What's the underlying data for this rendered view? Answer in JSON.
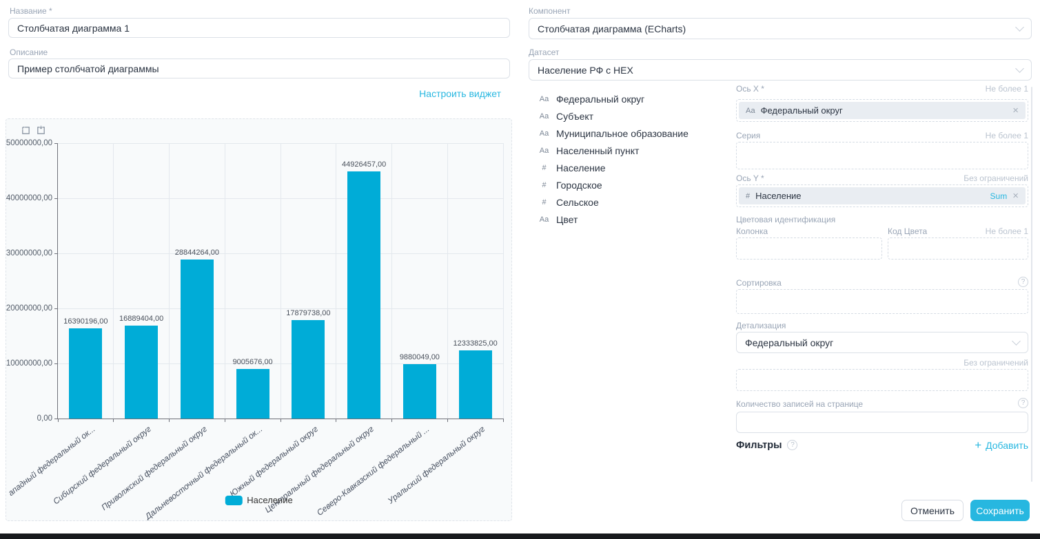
{
  "widget_form": {
    "name_label": "Название *",
    "name_value": "Столбчатая диаграмма 1",
    "description_label": "Описание",
    "description_value": "Пример столбчатой диаграммы",
    "configure_link": "Настроить виджет"
  },
  "component_select": {
    "label": "Компонент",
    "value": "Столбчатая диаграмма (ECharts)"
  },
  "dataset_select": {
    "label": "Датасет",
    "value": "Население РФ с HEX"
  },
  "dataset_fields": [
    {
      "type": "Аа",
      "name": "Федеральный округ"
    },
    {
      "type": "Аа",
      "name": "Субъект"
    },
    {
      "type": "Аа",
      "name": "Муниципальное образование"
    },
    {
      "type": "Аа",
      "name": "Населенный пункт"
    },
    {
      "type": "#",
      "name": "Население"
    },
    {
      "type": "#",
      "name": "Городское"
    },
    {
      "type": "#",
      "name": "Сельское"
    },
    {
      "type": "Аа",
      "name": "Цвет"
    }
  ],
  "settings": {
    "x_axis": {
      "label": "Ось X *",
      "limit": "Не более 1",
      "chip": {
        "type": "Аа",
        "name": "Федеральный округ"
      }
    },
    "series": {
      "label": "Серия",
      "limit": "Не более 1"
    },
    "y_axis": {
      "label": "Ось Y *",
      "limit": "Без ограничений",
      "chip": {
        "type": "#",
        "name": "Население",
        "aggregation": "Sum"
      }
    },
    "color_identification": {
      "label": "Цветовая идентификация",
      "column_label": "Колонка",
      "color_code_label": "Код Цвета",
      "limit": "Не более 1"
    },
    "sorting": {
      "label": "Сортировка"
    },
    "detailing": {
      "label": "Детализация",
      "value": "Федеральный округ",
      "limit": "Без ограничений"
    },
    "page_size": {
      "label": "Количество записей на странице"
    },
    "filters": {
      "label": "Фильтры",
      "add_label": "Добавить"
    }
  },
  "actions": {
    "cancel": "Отменить",
    "save": "Сохранить"
  },
  "chart_data": {
    "type": "bar",
    "categories": [
      "ападный федеральный ок...",
      "Сибирский федеральный округ",
      "Приволжский федеральный округ",
      "Дальневосточный федеральный ок...",
      "Южный федеральный округ",
      "Центральный федеральный округ",
      "Северо-Кавказский федеральный ...",
      "Уральский федеральный округ"
    ],
    "values": [
      16390196,
      16889404,
      28844264,
      9005676,
      17879738,
      44926457,
      9880049,
      12333825
    ],
    "bar_labels": [
      "16390196,00",
      "16889404,00",
      "28844264,00",
      "9005676,00",
      "17879738,00",
      "44926457,00",
      "9880049,00",
      "12333825,00"
    ],
    "y_tick_labels": [
      "0,00",
      "10000000,00",
      "20000000,00",
      "30000000,00",
      "40000000,00",
      "50000000,00"
    ],
    "ylim": [
      0,
      50000000
    ],
    "grid": true,
    "legend": [
      "Население"
    ],
    "legend_position": "bottom",
    "bar_color": "#00acd7"
  },
  "colors": {
    "accent": "#27b7e0",
    "bar": "#00acd7"
  }
}
